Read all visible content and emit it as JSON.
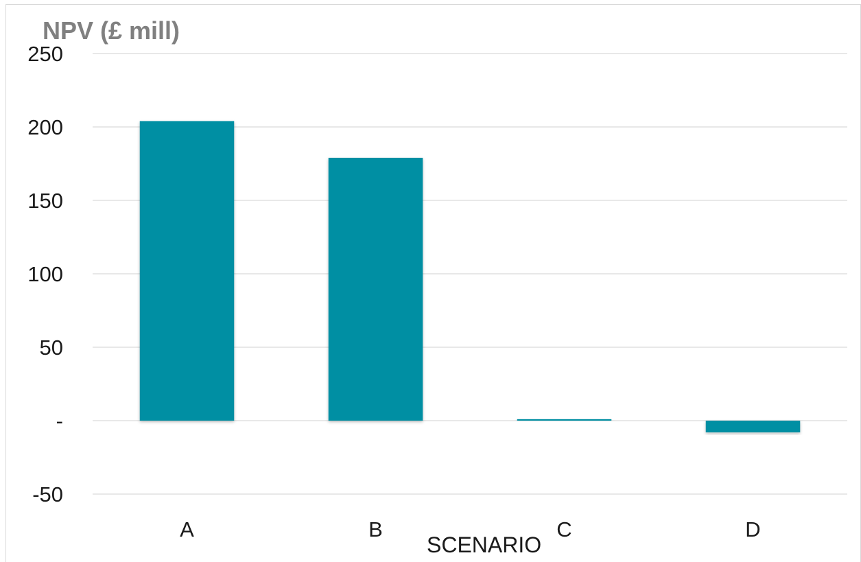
{
  "chart_data": {
    "type": "bar",
    "ylabel": "NPV (£ mill)",
    "xlabel": "SCENARIO",
    "categories": [
      "A",
      "B",
      "C",
      "D"
    ],
    "values": [
      204,
      179,
      1,
      -8
    ],
    "ylim": [
      -50,
      250
    ],
    "yticks": [
      250,
      200,
      150,
      100,
      50,
      0,
      -50
    ],
    "ytick_labels": [
      "250",
      "200",
      "150",
      "100",
      "50",
      "-",
      "-50"
    ],
    "grid": true,
    "legend": "none",
    "bar_color": "#008fa3",
    "grid_color": "#d9d9d9"
  }
}
